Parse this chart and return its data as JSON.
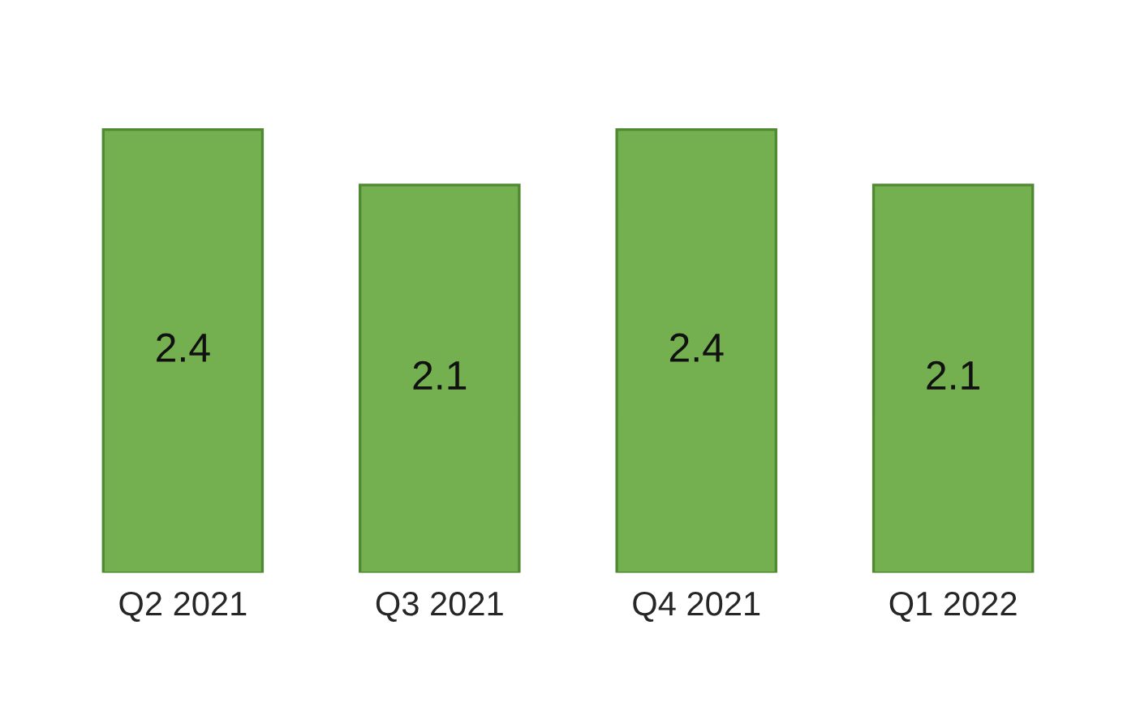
{
  "chart_data": {
    "type": "bar",
    "categories": [
      "Q2 2021",
      "Q3 2021",
      "Q4 2021",
      "Q1 2022"
    ],
    "values": [
      2.4,
      2.1,
      2.4,
      2.1
    ],
    "color": "#74b04f",
    "data_labels": true
  }
}
